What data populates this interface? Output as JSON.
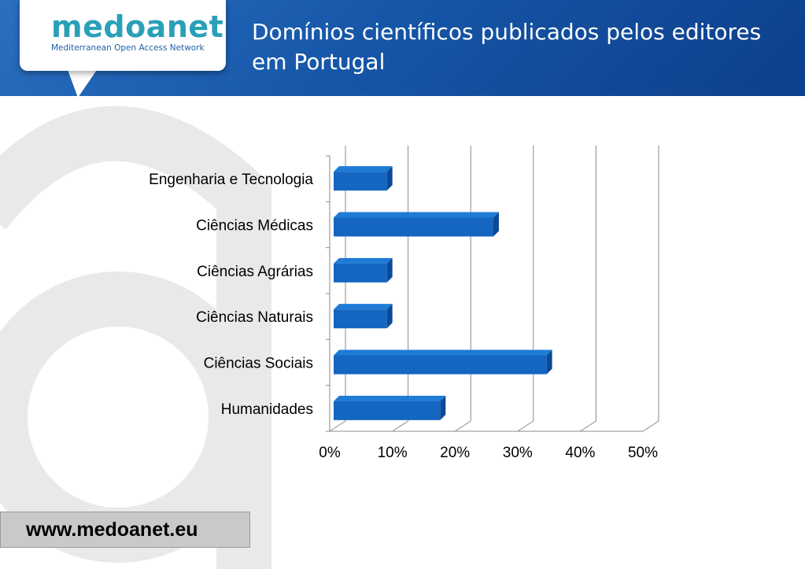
{
  "header": {
    "logo_word": "medoanet",
    "logo_tagline": "Mediterranean Open Access Network",
    "title_line1": "Domínios científicos publicados pelos editores",
    "title_line2": "em Portugal"
  },
  "footer": {
    "link": "www.medoanet.eu"
  },
  "colors": {
    "bar": "#1466c0",
    "bar_top": "#1e7bd6",
    "bar_side": "#0b4a96",
    "header": "#1656a8"
  },
  "chart_data": {
    "type": "bar",
    "orientation": "horizontal",
    "categories": [
      "Engenharia e Tecnologia",
      "Ciências Médicas",
      "Ciências Agrárias",
      "Ciências Naturais",
      "Ciências Sociais",
      "Humanidades"
    ],
    "values": [
      8.5,
      25.5,
      8.5,
      8.5,
      34,
      17
    ],
    "xlim": [
      0,
      50
    ],
    "ticks": [
      "0%",
      "10%",
      "20%",
      "30%",
      "40%",
      "50%"
    ],
    "tick_values": [
      0,
      10,
      20,
      30,
      40,
      50
    ],
    "grid": true,
    "legend": "none",
    "style": "3d"
  }
}
